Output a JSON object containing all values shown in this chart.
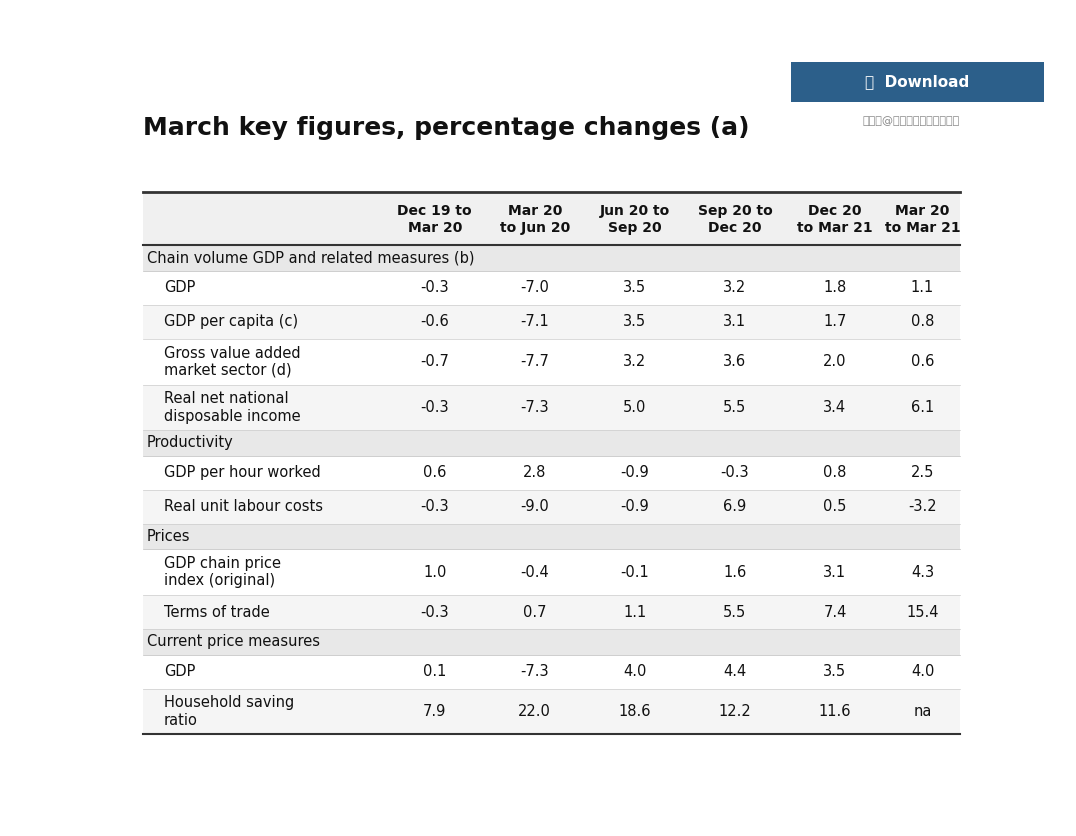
{
  "title": "March key figures, percentage changes (a)",
  "watermark": "搜狐号@嘉欧海外购房移民中心",
  "col_headers": [
    "",
    "Dec 19 to\nMar 20",
    "Mar 20\nto Jun 20",
    "Jun 20 to\nSep 20",
    "Sep 20 to\nDec 20",
    "Dec 20\nto Mar 21",
    "Mar 20\nto Mar 21"
  ],
  "sections": [
    {
      "label": "Chain volume GDP and related measures (b)",
      "is_header": true
    },
    {
      "label": "GDP",
      "is_header": false,
      "values": [
        "-0.3",
        "-7.0",
        "3.5",
        "3.2",
        "1.8",
        "1.1"
      ],
      "shade": false
    },
    {
      "label": "GDP per capita (c)",
      "is_header": false,
      "values": [
        "-0.6",
        "-7.1",
        "3.5",
        "3.1",
        "1.7",
        "0.8"
      ],
      "shade": true
    },
    {
      "label": "Gross value added\nmarket sector (d)",
      "is_header": false,
      "values": [
        "-0.7",
        "-7.7",
        "3.2",
        "3.6",
        "2.0",
        "0.6"
      ],
      "shade": false
    },
    {
      "label": "Real net national\ndisposable income",
      "is_header": false,
      "values": [
        "-0.3",
        "-7.3",
        "5.0",
        "5.5",
        "3.4",
        "6.1"
      ],
      "shade": true
    },
    {
      "label": "Productivity",
      "is_header": true
    },
    {
      "label": "GDP per hour worked",
      "is_header": false,
      "values": [
        "0.6",
        "2.8",
        "-0.9",
        "-0.3",
        "0.8",
        "2.5"
      ],
      "shade": false
    },
    {
      "label": "Real unit labour costs",
      "is_header": false,
      "values": [
        "-0.3",
        "-9.0",
        "-0.9",
        "6.9",
        "0.5",
        "-3.2"
      ],
      "shade": true
    },
    {
      "label": "Prices",
      "is_header": true
    },
    {
      "label": "GDP chain price\nindex (original)",
      "is_header": false,
      "values": [
        "1.0",
        "-0.4",
        "-0.1",
        "1.6",
        "3.1",
        "4.3"
      ],
      "shade": false
    },
    {
      "label": "Terms of trade",
      "is_header": false,
      "values": [
        "-0.3",
        "0.7",
        "1.1",
        "5.5",
        "7.4",
        "15.4"
      ],
      "shade": true
    },
    {
      "label": "Current price measures",
      "is_header": true
    },
    {
      "label": "GDP",
      "is_header": false,
      "values": [
        "0.1",
        "-7.3",
        "4.0",
        "4.4",
        "3.5",
        "4.0"
      ],
      "shade": false
    },
    {
      "label": "Household saving\nratio",
      "is_header": false,
      "values": [
        "7.9",
        "22.0",
        "18.6",
        "12.2",
        "11.6",
        "na"
      ],
      "shade": true
    }
  ],
  "header_bg": "#f0f0f0",
  "shade_bg": "#f5f5f5",
  "white_bg": "#ffffff",
  "section_bg": "#e8e8e8",
  "top_line_color": "#333333",
  "header_line_color": "#333333",
  "download_btn_color": "#2c5f8a",
  "download_btn_text": "⤵  Download",
  "title_fontsize": 18,
  "header_fontsize": 10,
  "cell_fontsize": 10.5,
  "section_fontsize": 10.5
}
